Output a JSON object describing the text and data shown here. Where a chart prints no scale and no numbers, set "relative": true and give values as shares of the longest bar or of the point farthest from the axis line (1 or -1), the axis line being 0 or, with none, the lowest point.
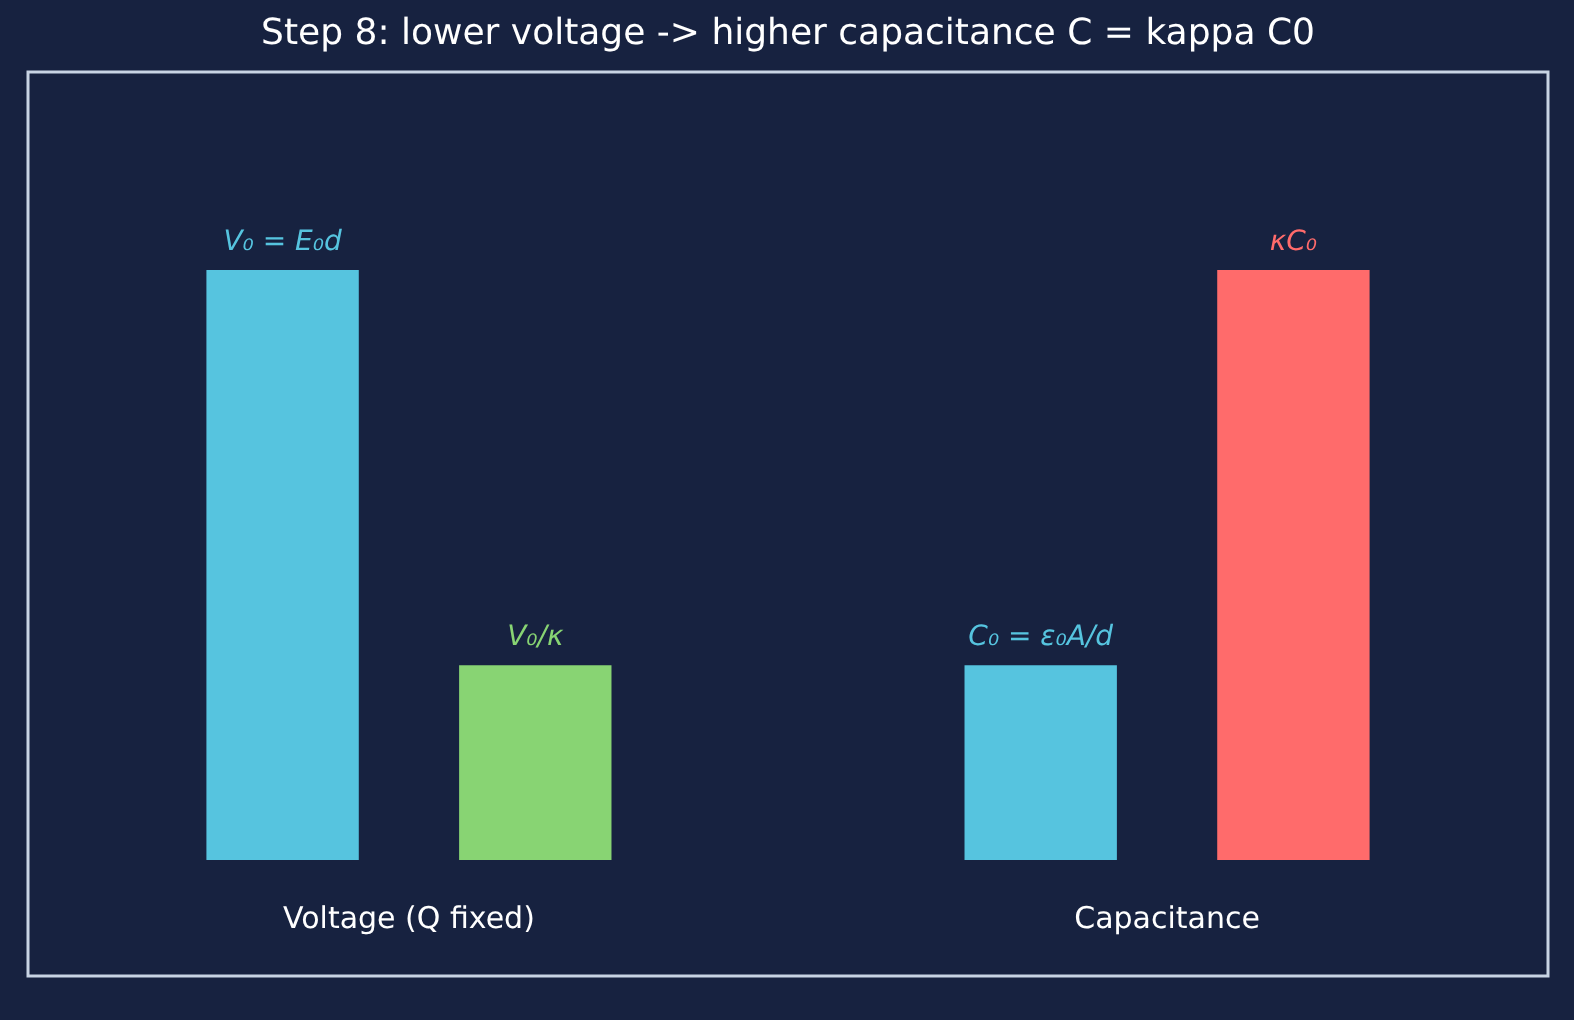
{
  "chart_data": {
    "type": "bar",
    "title": "Step 8: lower voltage -> higher capacitance  C = kappa C0",
    "relative": true,
    "categories": [
      "V₀ = E₀d",
      "V₀/κ",
      "C₀ = ε₀A/d",
      "κC₀"
    ],
    "values": [
      1,
      0.33,
      0.33,
      1
    ],
    "colors": [
      "#56c4df",
      "#88d473",
      "#56c4df",
      "#ff6b6b"
    ],
    "annotations": [
      "Voltage (Q fixed)",
      "Capacitance"
    ]
  }
}
